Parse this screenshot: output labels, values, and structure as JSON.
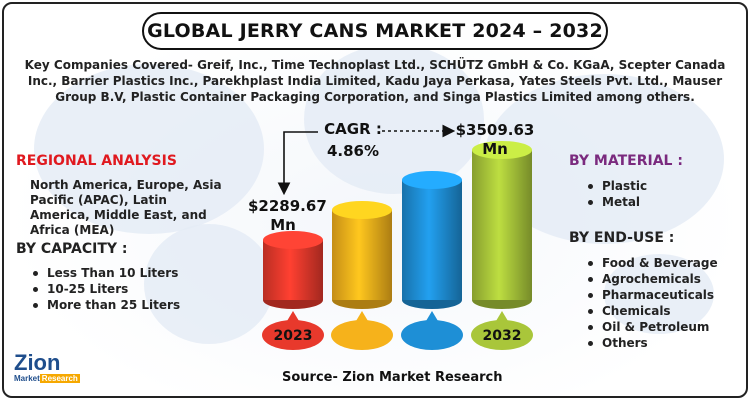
{
  "title": "GLOBAL JERRY CANS MARKET 2024 – 2032",
  "key_companies": "Key Companies Covered- Greif, Inc., Time Technoplast Ltd., SCHÜTZ GmbH & Co. KGaA, Scepter Canada Inc., Barrier Plastics Inc., Parekhplast India Limited, Kadu Jaya Perkasa, Yates Steels Pvt. Ltd., Mauser Group B.V, Plastic Container Packaging Corporation, and Singa Plastics Limited among others.",
  "regional": {
    "title": "REGIONAL ANALYSIS",
    "text": "North America, Europe, Asia Pacific (APAC), Latin America, Middle East, and Africa (MEA)"
  },
  "capacity": {
    "title": "BY CAPACITY :",
    "items": [
      "Less Than 10 Liters",
      "10-25 Liters",
      "More than 25 Liters"
    ]
  },
  "material": {
    "title": "BY MATERIAL :",
    "items": [
      "Plastic",
      "Metal"
    ]
  },
  "end_use": {
    "title": "BY END-USE :",
    "items": [
      "Food & Beverage",
      "Agrochemicals",
      "Pharmaceuticals",
      "Chemicals",
      "Oil & Petroleum",
      "Others"
    ]
  },
  "cagr": {
    "label": "CAGR :",
    "value": "4.86%"
  },
  "value_labels": {
    "start": "$2289.67 Mn",
    "end": "$3509.63 Mn"
  },
  "source": "Source- Zion Market Research",
  "logo": {
    "main": "Zion",
    "sub_left": "Market",
    "sub_right": "Research"
  },
  "colors": {
    "accent_red": "#e0191f",
    "accent_purple": "#7a2a7e"
  },
  "chart_data": {
    "type": "bar",
    "categories": [
      "2023",
      "",
      "",
      "2032"
    ],
    "values": [
      2289.67,
      null,
      null,
      3509.63
    ],
    "units": "USD Mn",
    "bar_colors": [
      "#e8392c",
      "#f6b21b",
      "#1e8fd6",
      "#a9c63a"
    ],
    "relative_heights": [
      0.4,
      0.6,
      0.8,
      1.0
    ],
    "cagr": "4.86%"
  }
}
